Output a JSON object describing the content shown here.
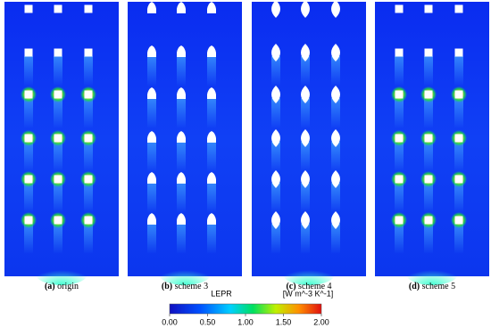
{
  "panels": [
    {
      "letter": "(a)",
      "name": "origin"
    },
    {
      "letter": "(b)",
      "name": "scheme 3"
    },
    {
      "letter": "(c)",
      "name": "scheme 4"
    },
    {
      "letter": "(d)",
      "name": "scheme 5"
    }
  ],
  "colorbar": {
    "title": "LEPR",
    "unit": "[W m^-3 K^-1]",
    "lim": [
      0,
      2
    ],
    "ticks": [
      {
        "value": 0,
        "label": "0.00"
      },
      {
        "value": 0.5,
        "label": "0.50"
      },
      {
        "value": 1,
        "label": "1.00"
      },
      {
        "value": 1.5,
        "label": "1.50"
      },
      {
        "value": 2,
        "label": "2.00"
      }
    ]
  }
}
